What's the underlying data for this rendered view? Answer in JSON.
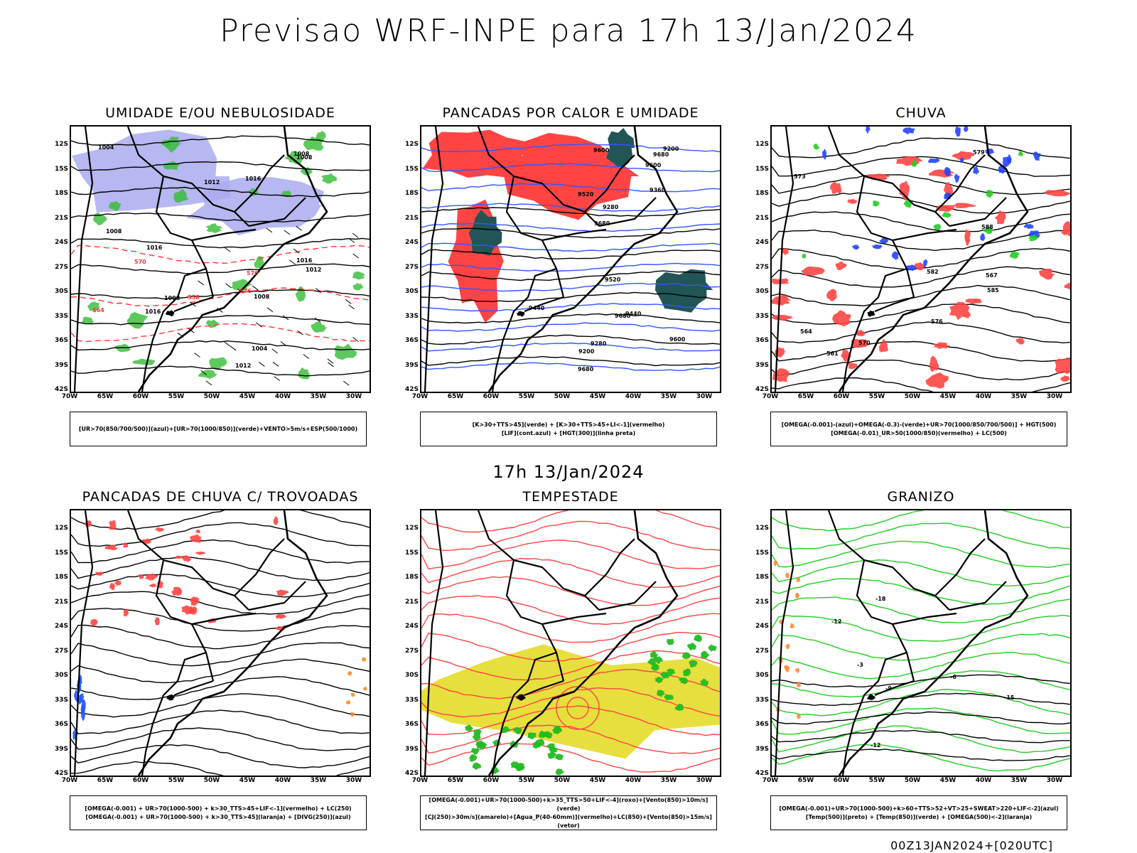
{
  "header": {
    "title": "Previsao WRF-INPE  para 17h 13/Jan/2024"
  },
  "middle_time": "17h 13/Jan/2024",
  "footer": "00Z13JAN2024+[020UTC]",
  "axes": {
    "lat_labels": [
      "12S",
      "15S",
      "18S",
      "21S",
      "24S",
      "27S",
      "30S",
      "33S",
      "36S",
      "39S",
      "42S"
    ],
    "lon_labels": [
      "70W",
      "65W",
      "60W",
      "55W",
      "50W",
      "45W",
      "40W",
      "35W",
      "30W"
    ]
  },
  "panels": [
    {
      "title": "UMIDADE E/OU NEBULOSIDADE",
      "legend": [
        "[UR>70(850/700/500)](azul)+[UR>70(1000/850)](verde)+VENTO>5m/s+ESP(500/1000)"
      ],
      "colors": {
        "fill1": "#aaaaee",
        "fill2": "#33bb33",
        "contour": "#ff3333",
        "line": "#000000"
      },
      "labels": [
        "1008",
        "1008",
        "1008",
        "1008",
        "1012",
        "1016",
        "1016",
        "1012",
        "1008",
        "1004",
        "1016",
        "1016",
        "1012",
        "1004",
        "570",
        "576",
        "570",
        "564",
        "558"
      ]
    },
    {
      "title": "PANCADAS POR CALOR E UMIDADE",
      "legend": [
        "[K>30+TTS>45](verde) + [K>30+TTS>45+LI<-1](vermelho)",
        "[LIF](cont.azul) + [HGT(300)](linha preta)"
      ],
      "colors": {
        "fill1": "#ff4444",
        "fill2": "#225555",
        "contour": "#3355ff",
        "line": "#000000"
      },
      "labels": [
        "9600",
        "9680",
        "9680",
        "9680",
        "9680",
        "9600",
        "9520",
        "9520",
        "9440",
        "9440",
        "9360",
        "9280",
        "9280",
        "9200",
        "9200",
        "9600"
      ]
    },
    {
      "title": "CHUVA",
      "legend": [
        "[OMEGA(-0.001)-(azul)+OMEGA(-0.3)-(verde)+UR>70(1000/850/700/500)] + HGT(500)",
        "[OMEGA(-0.01)_UR>50(1000/850)(vermelho) + LC(500)"
      ],
      "colors": {
        "fill1": "#ff4444",
        "fill2": "#2244ff",
        "contour": "#22cc22",
        "line": "#000000"
      },
      "labels": [
        "585",
        "582",
        "579",
        "576",
        "573",
        "570",
        "567",
        "564",
        "561",
        "588"
      ]
    },
    {
      "title": "PANCADAS DE CHUVA C/ TROVOADAS",
      "legend": [
        "[OMEGA(-0.001) + UR>70(1000-500) + k>30_TTS>45+LIF<-1](vermelho) + LC(250)",
        "[OMEGA(-0.001) + UR>70(1000-500) + k>30_TTS>45](laranja) + [DIVG(250)](azul)"
      ],
      "colors": {
        "fill1": "#ff4444",
        "fill2": "#2255ff",
        "contour": "#ff8822",
        "line": "#000000"
      },
      "labels": []
    },
    {
      "title": "TEMPESTADE",
      "legend": [
        "[OMEGA(-0.001)+UR>70(1000-500)+k>35_TTS>50+LIF<-4](roxo)+[Vento(850)>10m/s](verde)",
        "[CJ(250)>30m/s](amarelo)+[Agua_P(40-60mm)](vermelho)+LC(850)+[Vento(850)>15m/s](vetor)"
      ],
      "colors": {
        "fill1": "#e6dd33",
        "fill2": "#22bb22",
        "contour": "#ff4444",
        "line": "#000000"
      },
      "labels": []
    },
    {
      "title": "GRANIZO",
      "legend": [
        "[OMEGA(-0.001)+UR>70(1000-500)+k>60+TTS>52+VT>25+SWEAT>220+LIF<-2](azul)",
        "[Temp(500)](preto) + [Temp(850)](verde) + [OMEGA(500)<-2](laranja)"
      ],
      "colors": {
        "fill1": "#ff8833",
        "fill2": "#22cc22",
        "contour": "#22cc22",
        "line": "#000000"
      },
      "labels": [
        "-6",
        "-12",
        "-12",
        "-15",
        "-18",
        "-9",
        "-3"
      ]
    }
  ]
}
